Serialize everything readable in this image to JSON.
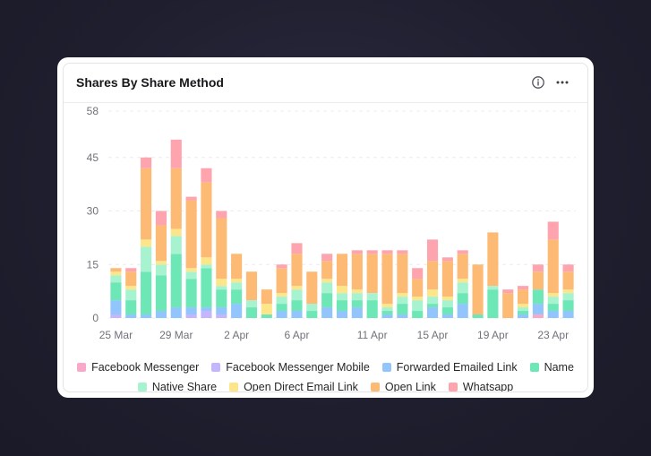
{
  "widget": {
    "title": "Shares By Share Method",
    "info_icon": "info-circle-icon",
    "more_icon": "more-horizontal-icon"
  },
  "chart_data": {
    "type": "bar",
    "stacked": true,
    "categories": [
      "25 Mar",
      "26 Mar",
      "27 Mar",
      "28 Mar",
      "29 Mar",
      "30 Mar",
      "31 Mar",
      "1 Apr",
      "2 Apr",
      "3 Apr",
      "4 Apr",
      "5 Apr",
      "6 Apr",
      "7 Apr",
      "8 Apr",
      "9 Apr",
      "10 Apr",
      "11 Apr",
      "12 Apr",
      "13 Apr",
      "14 Apr",
      "15 Apr",
      "16 Apr",
      "17 Apr",
      "18 Apr",
      "19 Apr",
      "20 Apr",
      "21 Apr",
      "22 Apr",
      "23 Apr",
      "24 Apr"
    ],
    "x_tick_labels": [
      "25 Mar",
      "29 Mar",
      "2 Apr",
      "6 Apr",
      "11 Apr",
      "15 Apr",
      "19 Apr",
      "23 Apr"
    ],
    "y_ticks": [
      0,
      15,
      30,
      45,
      58
    ],
    "ylim": [
      0,
      58
    ],
    "grid": true,
    "legend_position": "bottom",
    "series": [
      {
        "name": "Facebook Messenger",
        "color": "#f9a8c9",
        "values": [
          0,
          0,
          0,
          0,
          0,
          0,
          0,
          0,
          0,
          0,
          0,
          0,
          0,
          0,
          0,
          0,
          0,
          0,
          0,
          0,
          0,
          0,
          0,
          0,
          0,
          0,
          0,
          0,
          1,
          0,
          0
        ]
      },
      {
        "name": "Facebook Messenger Mobile",
        "color": "#c4b5fd",
        "values": [
          1,
          0,
          0,
          0,
          0,
          1,
          2,
          1,
          0,
          0,
          0,
          0,
          0,
          0,
          0,
          0,
          0,
          0,
          0,
          0,
          0,
          0,
          0,
          0,
          0,
          0,
          0,
          0,
          0,
          0,
          0
        ]
      },
      {
        "name": "Forwarded Emailed Link",
        "color": "#93c5fd",
        "values": [
          4,
          1,
          1,
          2,
          3,
          2,
          1,
          2,
          4,
          0,
          0,
          2,
          2,
          0,
          3,
          2,
          3,
          0,
          1,
          1,
          0,
          3,
          1,
          4,
          0,
          0,
          0,
          1,
          3,
          2,
          2
        ]
      },
      {
        "name": "Name",
        "color": "#6ee7b7",
        "values": [
          5,
          4,
          12,
          10,
          15,
          8,
          11,
          5,
          4,
          3,
          1,
          2,
          3,
          2,
          4,
          3,
          2,
          5,
          1,
          3,
          2,
          1,
          2,
          3,
          1,
          8,
          0,
          1,
          4,
          2,
          3
        ]
      },
      {
        "name": "Native Share",
        "color": "#a7f3d0",
        "values": [
          2,
          3,
          7,
          3,
          5,
          2,
          1,
          1,
          2,
          2,
          0,
          2,
          3,
          2,
          3,
          2,
          2,
          2,
          1,
          2,
          3,
          2,
          2,
          3,
          0,
          1,
          0,
          1,
          0,
          2,
          2
        ]
      },
      {
        "name": "Open Direct Email Link",
        "color": "#fde68a",
        "values": [
          1,
          1,
          2,
          1,
          2,
          1,
          2,
          2,
          1,
          0,
          3,
          1,
          1,
          0,
          1,
          2,
          1,
          0,
          1,
          1,
          1,
          2,
          1,
          1,
          0,
          0,
          0,
          1,
          0,
          1,
          1
        ]
      },
      {
        "name": "Open Link",
        "color": "#fdba74",
        "values": [
          1,
          4,
          20,
          10,
          17,
          19,
          21,
          17,
          7,
          8,
          4,
          7,
          9,
          9,
          5,
          9,
          10,
          11,
          14,
          11,
          5,
          8,
          10,
          7,
          14,
          15,
          7,
          4,
          5,
          15,
          5
        ]
      },
      {
        "name": "Whatsapp",
        "color": "#fda4af",
        "values": [
          0,
          1,
          3,
          4,
          8,
          1,
          4,
          2,
          0,
          0,
          0,
          1,
          3,
          0,
          2,
          0,
          1,
          1,
          1,
          1,
          3,
          6,
          1,
          1,
          0,
          0,
          1,
          1,
          2,
          5,
          2
        ]
      }
    ]
  }
}
